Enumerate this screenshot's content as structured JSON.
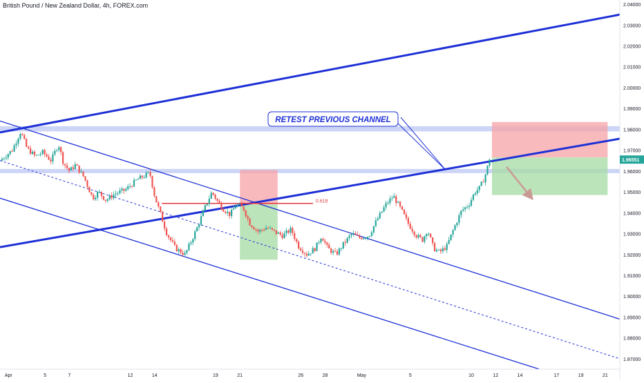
{
  "symbol_title": "British Pound / New Zealand Dollar, 4h, FOREX.com",
  "colors": {
    "up": "#26a69a",
    "down": "#ef5350",
    "channel": "#1d2fd6",
    "zone": "#cdd5f7",
    "tp": "#a5dba4",
    "sl": "#f6a3a7",
    "fib": "#e0393e",
    "price_tag": "#26a69a",
    "arrow": "#c99a94"
  },
  "chart_data": {
    "type": "candlestick",
    "title": "British Pound / New Zealand Dollar, 4h, FOREX.com",
    "timeframe": "4h",
    "y_ticks": [
      "2.04000",
      "2.03000",
      "2.02000",
      "2.01000",
      "2.00000",
      "1.99000",
      "1.98000",
      "1.97000",
      "1.96000",
      "1.95000",
      "1.94000",
      "1.93000",
      "1.92000",
      "1.91000",
      "1.90000",
      "1.89000",
      "1.88000",
      "1.87000"
    ],
    "y_range": [
      1.865,
      2.042
    ],
    "x_ticks": [
      "Apr",
      "5",
      "7",
      "12",
      "14",
      "19",
      "21",
      "26",
      "28",
      "May",
      "5",
      "10",
      "12",
      "14",
      "17",
      "19",
      "21"
    ],
    "x_tick_days": [
      0,
      3,
      5,
      10,
      12,
      17,
      19,
      24,
      26,
      29,
      33,
      38,
      40,
      42,
      45,
      47,
      49
    ],
    "x_range": [
      -0.7,
      50.2
    ],
    "last_price_label": "1.96551",
    "last_price": 1.9655,
    "price_points": [
      [
        -0.7,
        1.965
      ],
      [
        0.3,
        1.97
      ],
      [
        1.0,
        1.979
      ],
      [
        1.5,
        1.971
      ],
      [
        2.2,
        1.967
      ],
      [
        2.8,
        1.969
      ],
      [
        3.5,
        1.965
      ],
      [
        4.1,
        1.973
      ],
      [
        4.5,
        1.964
      ],
      [
        5.0,
        1.96
      ],
      [
        5.5,
        1.963
      ],
      [
        6.2,
        1.957
      ],
      [
        6.9,
        1.947
      ],
      [
        7.4,
        1.95
      ],
      [
        8.0,
        1.946
      ],
      [
        8.7,
        1.949
      ],
      [
        9.6,
        1.951
      ],
      [
        10.6,
        1.956
      ],
      [
        11.6,
        1.959
      ],
      [
        12.0,
        1.948
      ],
      [
        12.5,
        1.939
      ],
      [
        13.0,
        1.93
      ],
      [
        13.7,
        1.923
      ],
      [
        14.5,
        1.92
      ],
      [
        15.2,
        1.929
      ],
      [
        15.5,
        1.933
      ],
      [
        16.1,
        1.942
      ],
      [
        16.7,
        1.95
      ],
      [
        17.1,
        1.946
      ],
      [
        17.6,
        1.942
      ],
      [
        18.2,
        1.939
      ],
      [
        18.7,
        1.944
      ],
      [
        19.3,
        1.942
      ],
      [
        19.8,
        1.935
      ],
      [
        20.5,
        1.931
      ],
      [
        21.2,
        1.933
      ],
      [
        21.8,
        1.931
      ],
      [
        22.5,
        1.929
      ],
      [
        23.2,
        1.932
      ],
      [
        23.8,
        1.924
      ],
      [
        24.5,
        1.92
      ],
      [
        25.2,
        1.923
      ],
      [
        25.7,
        1.929
      ],
      [
        26.2,
        1.923
      ],
      [
        26.9,
        1.92
      ],
      [
        27.5,
        1.925
      ],
      [
        28.2,
        1.93
      ],
      [
        28.8,
        1.928
      ],
      [
        29.6,
        1.929
      ],
      [
        30.2,
        1.936
      ],
      [
        31.0,
        1.944
      ],
      [
        31.6,
        1.948
      ],
      [
        32.2,
        1.942
      ],
      [
        32.8,
        1.935
      ],
      [
        33.5,
        1.929
      ],
      [
        34.0,
        1.927
      ],
      [
        34.4,
        1.932
      ],
      [
        34.9,
        1.923
      ],
      [
        35.4,
        1.921
      ],
      [
        36.0,
        1.924
      ],
      [
        36.6,
        1.933
      ],
      [
        37.2,
        1.941
      ],
      [
        37.8,
        1.944
      ],
      [
        38.3,
        1.95
      ],
      [
        38.7,
        1.952
      ],
      [
        39.1,
        1.957
      ],
      [
        39.5,
        1.9655
      ]
    ],
    "channel_lines": [
      {
        "name": "upper-channel",
        "width": 3,
        "dash": false,
        "points": [
          [
            -0.7,
            1.9785
          ],
          [
            50.2,
            2.035
          ]
        ]
      },
      {
        "name": "retest-channel",
        "width": 3,
        "dash": false,
        "points": [
          [
            -0.7,
            1.9235
          ],
          [
            50.2,
            1.9755
          ]
        ]
      },
      {
        "name": "falling-channel-top",
        "width": 1.3,
        "dash": false,
        "points": [
          [
            -0.7,
            1.984
          ],
          [
            50.2,
            1.889
          ]
        ]
      },
      {
        "name": "falling-channel-mid",
        "width": 1,
        "dash": true,
        "points": [
          [
            -0.7,
            1.965
          ],
          [
            50.2,
            1.87
          ]
        ]
      },
      {
        "name": "falling-channel-bottom",
        "width": 1.3,
        "dash": false,
        "points": [
          [
            -0.7,
            1.947
          ],
          [
            43.6,
            1.865
          ]
        ]
      }
    ],
    "horizontal_zones": [
      {
        "name": "resistance-zone",
        "y": [
          1.979,
          1.9815
        ],
        "from": -0.7,
        "to": 50.2
      },
      {
        "name": "support-zone",
        "y": [
          1.959,
          1.961
        ],
        "from": -0.7,
        "to": 50.2
      }
    ],
    "positions": [
      {
        "name": "past-short",
        "from": 19.0,
        "to": 22.1,
        "entry": 1.944,
        "stop": 1.9605,
        "target": 1.9175
      },
      {
        "name": "current-short",
        "from": 39.7,
        "to": 49.2,
        "entry": 1.9665,
        "stop": 1.9835,
        "target": 1.9485
      }
    ],
    "fib_level": {
      "label": "0.618",
      "value": 1.9445,
      "from": 12.6,
      "to": 25.0
    },
    "annotation": {
      "text": "RETEST PREVIOUS CHANNEL",
      "points_to": [
        35.9,
        1.9605
      ]
    },
    "projection_arrow": {
      "from": [
        40.9,
        1.962
      ],
      "to": [
        43.1,
        1.946
      ]
    }
  }
}
